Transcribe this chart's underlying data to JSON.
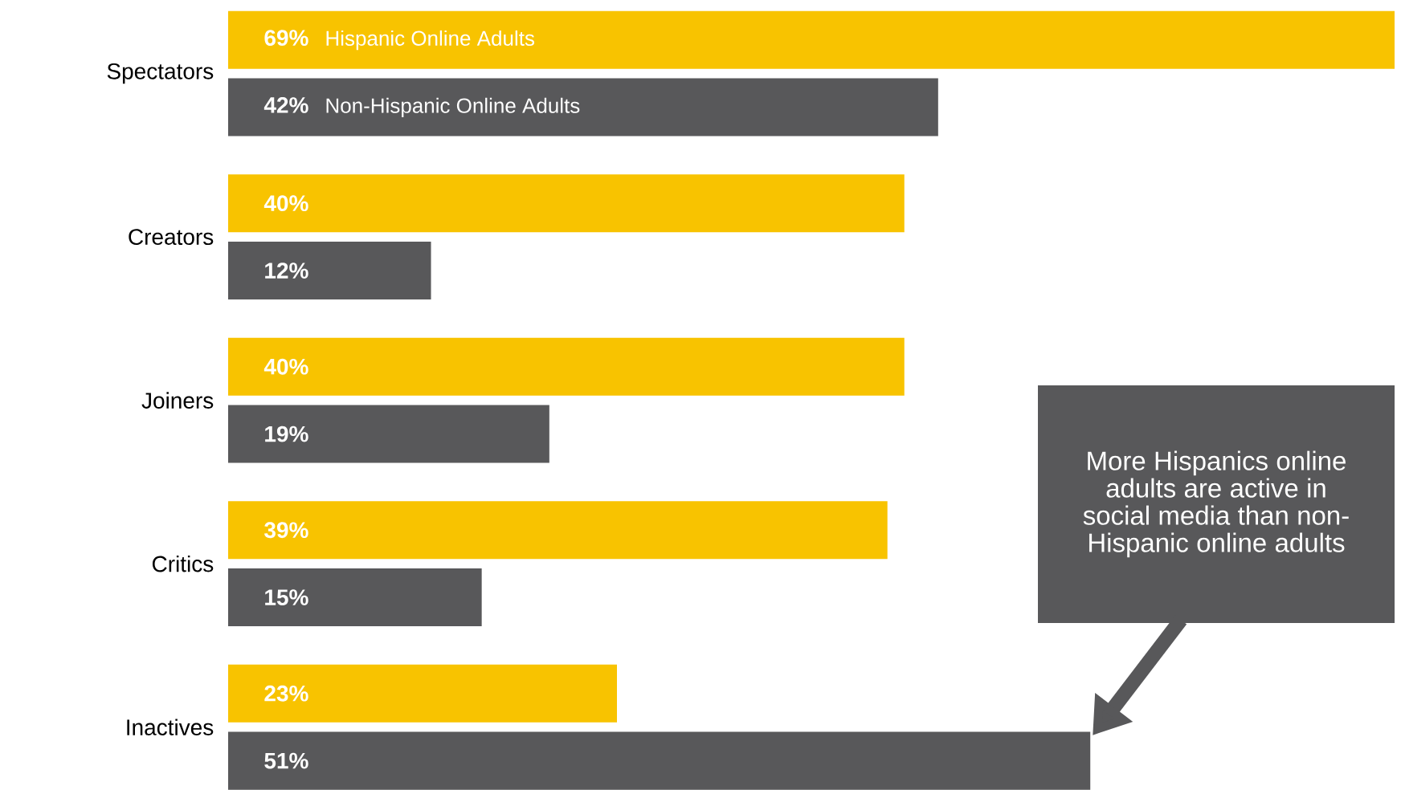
{
  "chart_data": {
    "type": "bar",
    "orientation": "horizontal",
    "categories": [
      "Spectators",
      "Creators",
      "Joiners",
      "Critics",
      "Inactives"
    ],
    "series": [
      {
        "name": "Hispanic Online Adults",
        "color": "#f8c300",
        "values": [
          69,
          40,
          40,
          39,
          23
        ],
        "value_labels": [
          "69%",
          "40%",
          "40%",
          "39%",
          "23%"
        ]
      },
      {
        "name": "Non-Hispanic Online Adults",
        "color": "#58585a",
        "values": [
          42,
          12,
          19,
          15,
          51
        ],
        "value_labels": [
          "42%",
          "12%",
          "19%",
          "15%",
          "51%"
        ]
      }
    ],
    "annotations": [
      "More Hispanics online adults are active in social media than non-Hispanic online adults"
    ],
    "legend": false
  }
}
